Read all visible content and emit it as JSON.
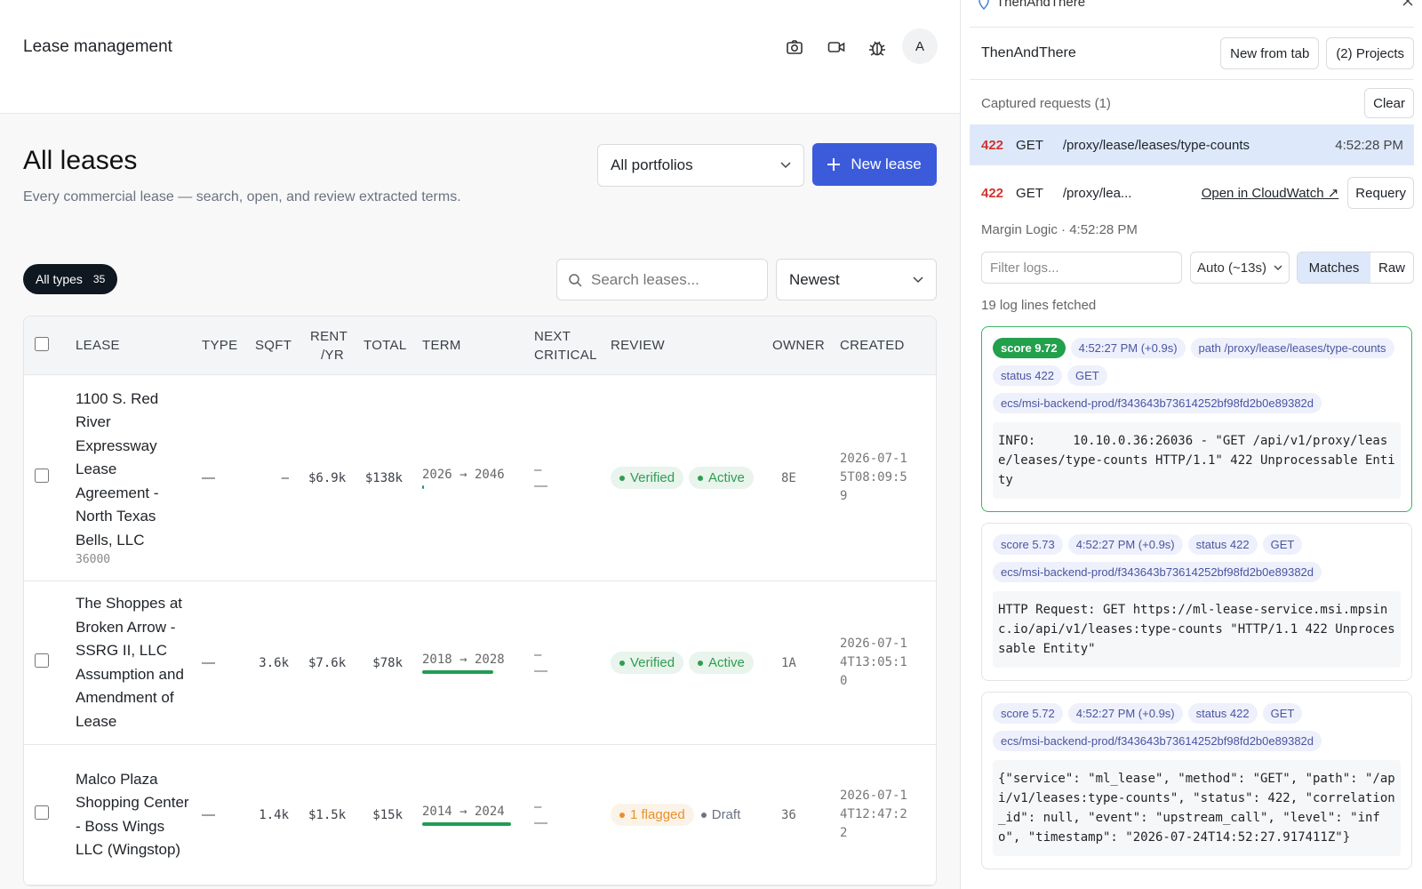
{
  "header": {
    "title": "Lease management",
    "avatar": "A"
  },
  "page": {
    "title": "All leases",
    "subtitle": "Every commercial lease — search, open, and review extracted terms.",
    "portfolio_select": "All portfolios",
    "new_button": "New lease"
  },
  "filters": {
    "type_chip": "All types",
    "type_count": 35,
    "search_placeholder": "Search leases...",
    "sort": "Newest"
  },
  "table": {
    "columns": [
      "LEASE",
      "TYPE",
      "SQFT",
      "RENT /YR",
      "TOTAL",
      "TERM",
      "NEXT CRITICAL",
      "REVIEW",
      "OWNER",
      "CREATED"
    ],
    "rows": [
      {
        "lease": "1100 S. Red River Expressway Lease Agreement - North Texas Bells, LLC",
        "lease_id": "36000",
        "type": "—",
        "sqft": "–",
        "rent": "$6.9k",
        "total": "$138k",
        "term": "2026 → 2046",
        "term_elapsed": 0,
        "next_critical": [
          "–",
          "—"
        ],
        "review": [
          {
            "label": "Verified",
            "color": "#2f9d50",
            "pill": true
          },
          {
            "label": "Active",
            "color": "#2f9d50",
            "pill": true
          }
        ],
        "owner": "8E",
        "created": "2026-07-15T08:09:59"
      },
      {
        "lease": "The Shoppes at Broken Arrow - SSRG II, LLC Assumption and Amendment of Lease",
        "type": "—",
        "sqft": "3.6k",
        "rent": "$7.6k",
        "total": "$78k",
        "term": "2018 → 2028",
        "term_elapsed": 80,
        "next_critical": [
          "–",
          "—"
        ],
        "review": [
          {
            "label": "Verified",
            "color": "#2f9d50",
            "pill": true
          },
          {
            "label": "Active",
            "color": "#2f9d50",
            "pill": true
          }
        ],
        "owner": "1A",
        "created": "2026-07-14T13:05:10"
      },
      {
        "lease": "Malco Plaza Shopping Center - Boss Wings LLC (Wingstop)",
        "type": "—",
        "sqft": "1.4k",
        "rent": "$1.5k",
        "total": "$15k",
        "term": "2014 → 2024",
        "term_elapsed": 100,
        "next_critical": [
          "–",
          "—"
        ],
        "review": [
          {
            "label": "1 flagged",
            "color": "#e8912d",
            "pill": true
          },
          {
            "label": "Draft",
            "color": "#6b7280",
            "pill": false
          }
        ],
        "owner": "36",
        "created": "2026-07-14T12:47:22"
      }
    ]
  },
  "panel": {
    "app_name": "ThenAndThere",
    "title": "ThenAndThere",
    "new_from_tab": "New from tab",
    "projects": "(2) Projects",
    "captured": "Captured requests (1)",
    "clear": "Clear",
    "request": {
      "status": "422",
      "method": "GET",
      "path": "/proxy/lease/leases/type-counts",
      "time": "4:52:28 PM"
    },
    "detail": {
      "status": "422",
      "method": "GET",
      "path": "/proxy/lea...",
      "cloudwatch": "Open in CloudWatch ↗",
      "requery": "Requery",
      "source": "Margin Logic · 4:52:28 PM",
      "filter_placeholder": "Filter logs...",
      "auto": "Auto (~13s)",
      "matches": "Matches",
      "raw": "Raw",
      "fetched": "19 log lines fetched"
    },
    "logs": [
      {
        "tags": [
          "score 9.72",
          "4:52:27 PM (+0.9s)",
          "path /proxy/lease/leases/type-counts",
          "status 422",
          "GET",
          "ecs/msi-backend-prod/f343643b73614252bf98fd2b0e89382d"
        ],
        "body": "INFO:     10.10.0.36:26036 - \"GET /api/v1/proxy/lease/leases/type-counts HTTP/1.1\" 422 Unprocessable Entity"
      },
      {
        "tags": [
          "score 5.73",
          "4:52:27 PM (+0.9s)",
          "status 422",
          "GET",
          "ecs/msi-backend-prod/f343643b73614252bf98fd2b0e89382d"
        ],
        "body": "HTTP Request: GET https://ml-lease-service.msi.mpsinc.io/api/v1/leases:type-counts \"HTTP/1.1 422 Unprocessable Entity\""
      },
      {
        "tags": [
          "score 5.72",
          "4:52:27 PM (+0.9s)",
          "status 422",
          "GET",
          "ecs/msi-backend-prod/f343643b73614252bf98fd2b0e89382d"
        ],
        "body": "{\"service\": \"ml_lease\", \"method\": \"GET\", \"path\": \"/api/v1/leases:type-counts\", \"status\": 422, \"correlation_id\": null, \"event\": \"upstream_call\", \"level\": \"info\", \"timestamp\": \"2026-07-24T14:52:27.917411Z\"}"
      }
    ]
  }
}
